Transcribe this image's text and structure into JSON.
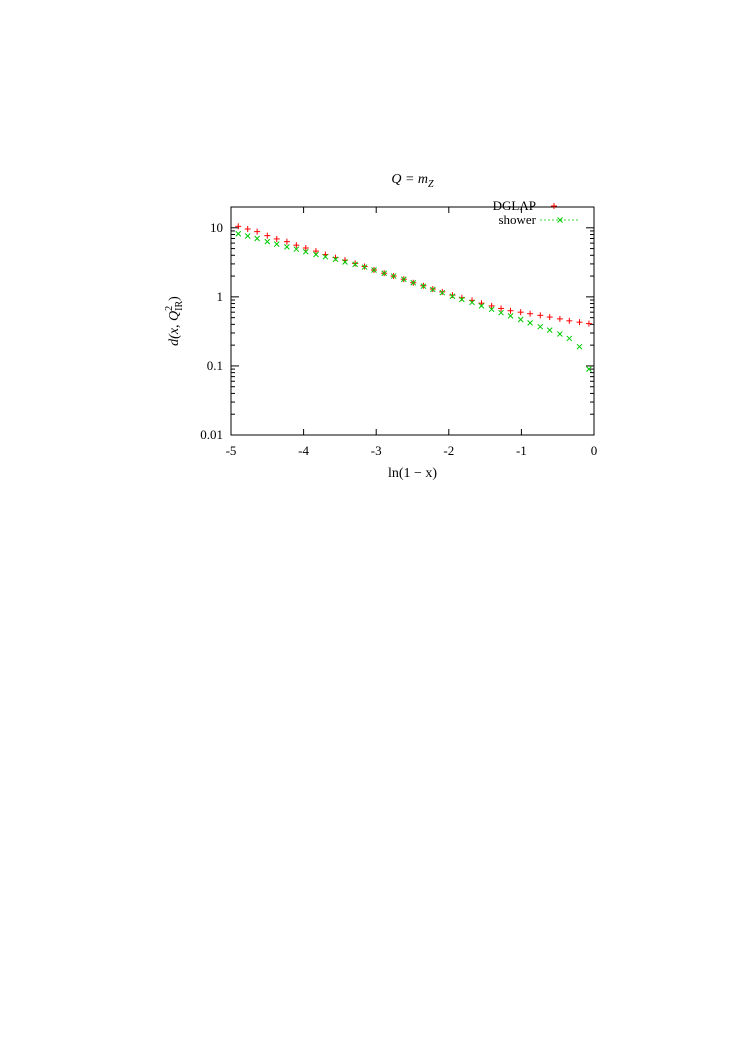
{
  "chart_data": {
    "type": "scatter",
    "title": "Q = m",
    "title_subscript": "Z",
    "xlabel": "ln(1 − x)",
    "ylabel_prefix": "d(x, Q",
    "ylabel_sup": "2",
    "ylabel_sub": "IR",
    "ylabel_suffix": ")",
    "xlim": [
      -5,
      0
    ],
    "ylim": [
      0.01,
      20
    ],
    "y_scale": "log",
    "grid": false,
    "legend_placement": "top-right",
    "x_ticks": [
      {
        "value": -5,
        "label": "-5"
      },
      {
        "value": -4,
        "label": "-4"
      },
      {
        "value": -3,
        "label": "-3"
      },
      {
        "value": -2,
        "label": "-2"
      },
      {
        "value": -1,
        "label": "-1"
      },
      {
        "value": 0,
        "label": "0"
      }
    ],
    "y_ticks": [
      {
        "value": 0.01,
        "label": "0.01"
      },
      {
        "value": 0.1,
        "label": "0.1"
      },
      {
        "value": 1,
        "label": "1"
      },
      {
        "value": 10,
        "label": "10"
      }
    ],
    "series": [
      {
        "name": "DGLAP",
        "color": "#ff0000",
        "marker": "plus",
        "x": [
          -4.9,
          -4.77,
          -4.64,
          -4.5,
          -4.37,
          -4.23,
          -4.1,
          -3.97,
          -3.83,
          -3.7,
          -3.56,
          -3.43,
          -3.29,
          -3.16,
          -3.03,
          -2.89,
          -2.76,
          -2.62,
          -2.49,
          -2.35,
          -2.22,
          -2.09,
          -1.95,
          -1.82,
          -1.68,
          -1.55,
          -1.41,
          -1.28,
          -1.15,
          -1.01,
          -0.88,
          -0.74,
          -0.61,
          -0.47,
          -0.34,
          -0.2,
          -0.07
        ],
        "y": [
          10.5,
          9.6,
          8.8,
          7.7,
          6.9,
          6.3,
          5.6,
          5.1,
          4.6,
          4.1,
          3.7,
          3.4,
          3.05,
          2.75,
          2.45,
          2.2,
          2.0,
          1.8,
          1.6,
          1.45,
          1.3,
          1.18,
          1.06,
          0.97,
          0.89,
          0.81,
          0.74,
          0.68,
          0.63,
          0.6,
          0.57,
          0.54,
          0.51,
          0.48,
          0.45,
          0.43,
          0.41
        ]
      },
      {
        "name": "shower",
        "color": "#00cc00",
        "marker": "cross",
        "x": [
          -4.9,
          -4.77,
          -4.64,
          -4.5,
          -4.37,
          -4.23,
          -4.1,
          -3.97,
          -3.83,
          -3.7,
          -3.56,
          -3.43,
          -3.29,
          -3.16,
          -3.03,
          -2.89,
          -2.76,
          -2.62,
          -2.49,
          -2.35,
          -2.22,
          -2.09,
          -1.95,
          -1.82,
          -1.68,
          -1.55,
          -1.41,
          -1.28,
          -1.15,
          -1.01,
          -0.88,
          -0.74,
          -0.61,
          -0.47,
          -0.34,
          -0.2,
          -0.07
        ],
        "y": [
          8.2,
          7.6,
          7.0,
          6.3,
          5.8,
          5.3,
          4.9,
          4.5,
          4.1,
          3.8,
          3.5,
          3.2,
          2.95,
          2.7,
          2.45,
          2.2,
          2.0,
          1.8,
          1.6,
          1.43,
          1.28,
          1.15,
          1.02,
          0.92,
          0.83,
          0.74,
          0.66,
          0.59,
          0.53,
          0.47,
          0.42,
          0.37,
          0.33,
          0.29,
          0.25,
          0.19,
          0.09
        ]
      }
    ]
  }
}
